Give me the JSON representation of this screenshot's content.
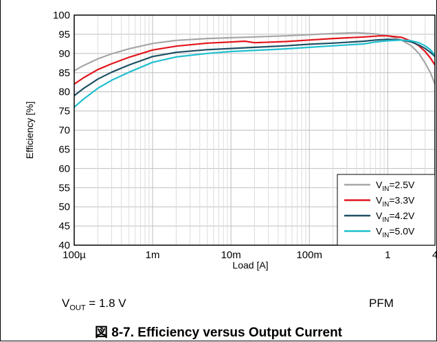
{
  "chart_data": {
    "type": "line",
    "xlabel": "Load [A]",
    "ylabel": "Efficiency [%]",
    "x_scale": "log",
    "xlim": [
      0.0001,
      4
    ],
    "ylim": [
      40,
      100
    ],
    "x_ticks": [
      0.0001,
      0.001,
      0.01,
      0.1,
      1,
      4
    ],
    "x_tick_labels": [
      "100µ",
      "1m",
      "10m",
      "100m",
      "1",
      "4"
    ],
    "y_ticks": [
      40,
      45,
      50,
      55,
      60,
      65,
      70,
      75,
      80,
      85,
      90,
      95,
      100
    ],
    "grid": true,
    "legend_position": "bottom-right",
    "series": [
      {
        "name": "VIN=2.5V",
        "legend_base": "V",
        "legend_sub": "IN",
        "legend_rest": "=2.5V",
        "color": "#a6a6a6",
        "x": [
          0.0001,
          0.00013,
          0.0002,
          0.0003,
          0.0005,
          0.001,
          0.002,
          0.005,
          0.01,
          0.02,
          0.05,
          0.1,
          0.2,
          0.4,
          0.7,
          1,
          1.5,
          2,
          2.5,
          3,
          3.5,
          4
        ],
        "y": [
          85.5,
          86.8,
          88.6,
          89.9,
          91.2,
          92.6,
          93.4,
          93.9,
          94.1,
          94.3,
          94.6,
          94.9,
          95.2,
          95.4,
          95.1,
          94.6,
          93.5,
          92.0,
          90.0,
          87.5,
          85.0,
          82.0
        ]
      },
      {
        "name": "VIN=3.3V",
        "legend_base": "V",
        "legend_sub": "IN",
        "legend_rest": "=3.3V",
        "color": "#e3141b",
        "x": [
          0.0001,
          0.00013,
          0.0002,
          0.0003,
          0.0005,
          0.001,
          0.002,
          0.005,
          0.01,
          0.015,
          0.02,
          0.05,
          0.1,
          0.2,
          0.5,
          0.8,
          1,
          1.5,
          2,
          2.5,
          3,
          3.5,
          4
        ],
        "y": [
          82.0,
          83.6,
          85.8,
          87.3,
          89.0,
          90.9,
          91.9,
          92.7,
          93.0,
          93.2,
          92.8,
          93.1,
          93.5,
          93.9,
          94.3,
          94.6,
          94.6,
          94.2,
          93.2,
          92.0,
          90.5,
          88.8,
          87.0
        ]
      },
      {
        "name": "VIN=4.2V",
        "legend_base": "V",
        "legend_sub": "IN",
        "legend_rest": "=4.2V",
        "color": "#1d4f63",
        "x": [
          0.0001,
          0.00013,
          0.0002,
          0.0003,
          0.0005,
          0.001,
          0.002,
          0.005,
          0.01,
          0.02,
          0.05,
          0.1,
          0.2,
          0.5,
          0.7,
          1,
          1.5,
          2,
          2.5,
          3,
          3.5,
          4
        ],
        "y": [
          79.0,
          80.8,
          83.3,
          85.1,
          87.0,
          89.2,
          90.3,
          91.0,
          91.3,
          91.6,
          92.0,
          92.4,
          92.7,
          93.2,
          93.5,
          93.7,
          93.5,
          93.0,
          92.2,
          91.3,
          90.3,
          89.2
        ]
      },
      {
        "name": "VIN=5.0V",
        "legend_base": "V",
        "legend_sub": "IN",
        "legend_rest": "=5.0V",
        "color": "#1fbfcf",
        "x": [
          0.0001,
          0.00013,
          0.0002,
          0.0003,
          0.0005,
          0.001,
          0.002,
          0.005,
          0.01,
          0.02,
          0.05,
          0.1,
          0.2,
          0.5,
          0.7,
          1,
          1.5,
          2,
          2.5,
          3,
          3.5,
          4
        ],
        "y": [
          76.0,
          78.0,
          80.9,
          83.0,
          85.1,
          87.7,
          89.1,
          90.0,
          90.5,
          90.8,
          91.2,
          91.6,
          92.0,
          92.5,
          93.0,
          93.3,
          93.5,
          93.3,
          92.8,
          92.0,
          91.0,
          89.5
        ]
      }
    ]
  },
  "footnote": {
    "vout_base": "V",
    "vout_sub": "OUT",
    "vout_rest": " = 1.8 V",
    "mode": "PFM"
  },
  "caption": "図 8-7. Efficiency versus Output Current"
}
